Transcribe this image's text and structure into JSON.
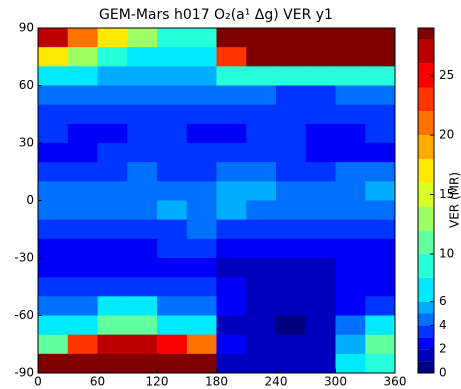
{
  "chart_data": {
    "type": "contour",
    "title": "GEM-Mars h017 O₂(a¹ Δg) VER y1",
    "colorbar_label": "VER (MR)",
    "x": [
      15,
      45,
      75,
      105,
      135,
      165,
      195,
      225,
      255,
      285,
      315,
      345
    ],
    "y": [
      85,
      75,
      65,
      55,
      45,
      35,
      25,
      15,
      5,
      -5,
      -15,
      -25,
      -35,
      -45,
      -55,
      -65,
      -75,
      -85
    ],
    "z": [
      [
        27,
        20,
        16,
        12,
        9,
        8,
        28,
        28,
        28,
        28,
        28,
        28
      ],
      [
        16,
        12,
        8,
        7,
        6,
        6,
        22,
        28,
        28,
        28,
        28,
        28
      ],
      [
        7,
        6,
        5,
        5,
        5,
        5,
        8,
        9,
        9,
        8,
        9,
        9
      ],
      [
        4,
        4,
        4,
        4,
        4,
        4,
        4,
        4,
        3,
        3,
        4,
        4
      ],
      [
        3,
        3,
        3,
        3,
        3,
        3,
        3,
        3,
        3,
        3,
        3,
        3
      ],
      [
        3,
        2,
        2,
        3,
        3,
        2,
        2,
        3,
        3,
        2,
        2,
        3
      ],
      [
        2,
        2,
        3,
        3,
        3,
        3,
        3,
        3,
        3,
        2,
        2,
        2
      ],
      [
        3,
        3,
        3,
        4,
        3,
        3,
        4,
        4,
        3,
        3,
        4,
        4
      ],
      [
        4,
        4,
        4,
        4,
        4,
        4,
        5,
        5,
        4,
        4,
        4,
        5
      ],
      [
        4,
        4,
        4,
        4,
        5,
        4,
        5,
        4,
        4,
        4,
        4,
        4
      ],
      [
        3,
        3,
        3,
        3,
        3,
        4,
        3,
        3,
        3,
        3,
        3,
        3
      ],
      [
        2,
        2,
        2,
        2,
        3,
        3,
        2,
        2,
        2,
        2,
        2,
        2
      ],
      [
        2,
        2,
        2,
        2,
        2,
        2,
        1,
        1,
        1,
        1,
        2,
        2
      ],
      [
        3,
        3,
        3,
        3,
        3,
        3,
        2,
        1,
        1,
        1,
        2,
        2
      ],
      [
        4,
        4,
        6,
        6,
        4,
        4,
        2,
        1,
        1,
        1,
        2,
        3
      ],
      [
        6,
        6,
        10,
        10,
        7,
        6,
        1,
        1,
        0.5,
        1,
        4,
        6
      ],
      [
        10,
        22,
        26,
        26,
        24,
        20,
        2,
        1,
        1,
        1,
        5,
        10
      ],
      [
        28,
        28,
        28,
        28,
        28,
        28,
        1,
        1,
        1,
        1,
        6,
        8
      ]
    ],
    "levels": [
      0,
      1,
      2,
      3,
      4,
      5,
      6,
      8,
      10,
      12,
      14,
      16,
      18,
      20,
      22,
      24,
      26,
      28
    ],
    "colormap": "jet",
    "xlim": [
      0,
      360
    ],
    "xticks": [
      0,
      60,
      120,
      180,
      240,
      300,
      360
    ],
    "ylim": [
      -90,
      90
    ],
    "yticks": [
      -90,
      -60,
      -30,
      0,
      30,
      60,
      90
    ],
    "colorbar_lim": [
      0,
      29
    ],
    "colorbar_ticks": [
      0,
      2,
      4,
      6,
      10,
      15,
      20,
      25
    ]
  }
}
